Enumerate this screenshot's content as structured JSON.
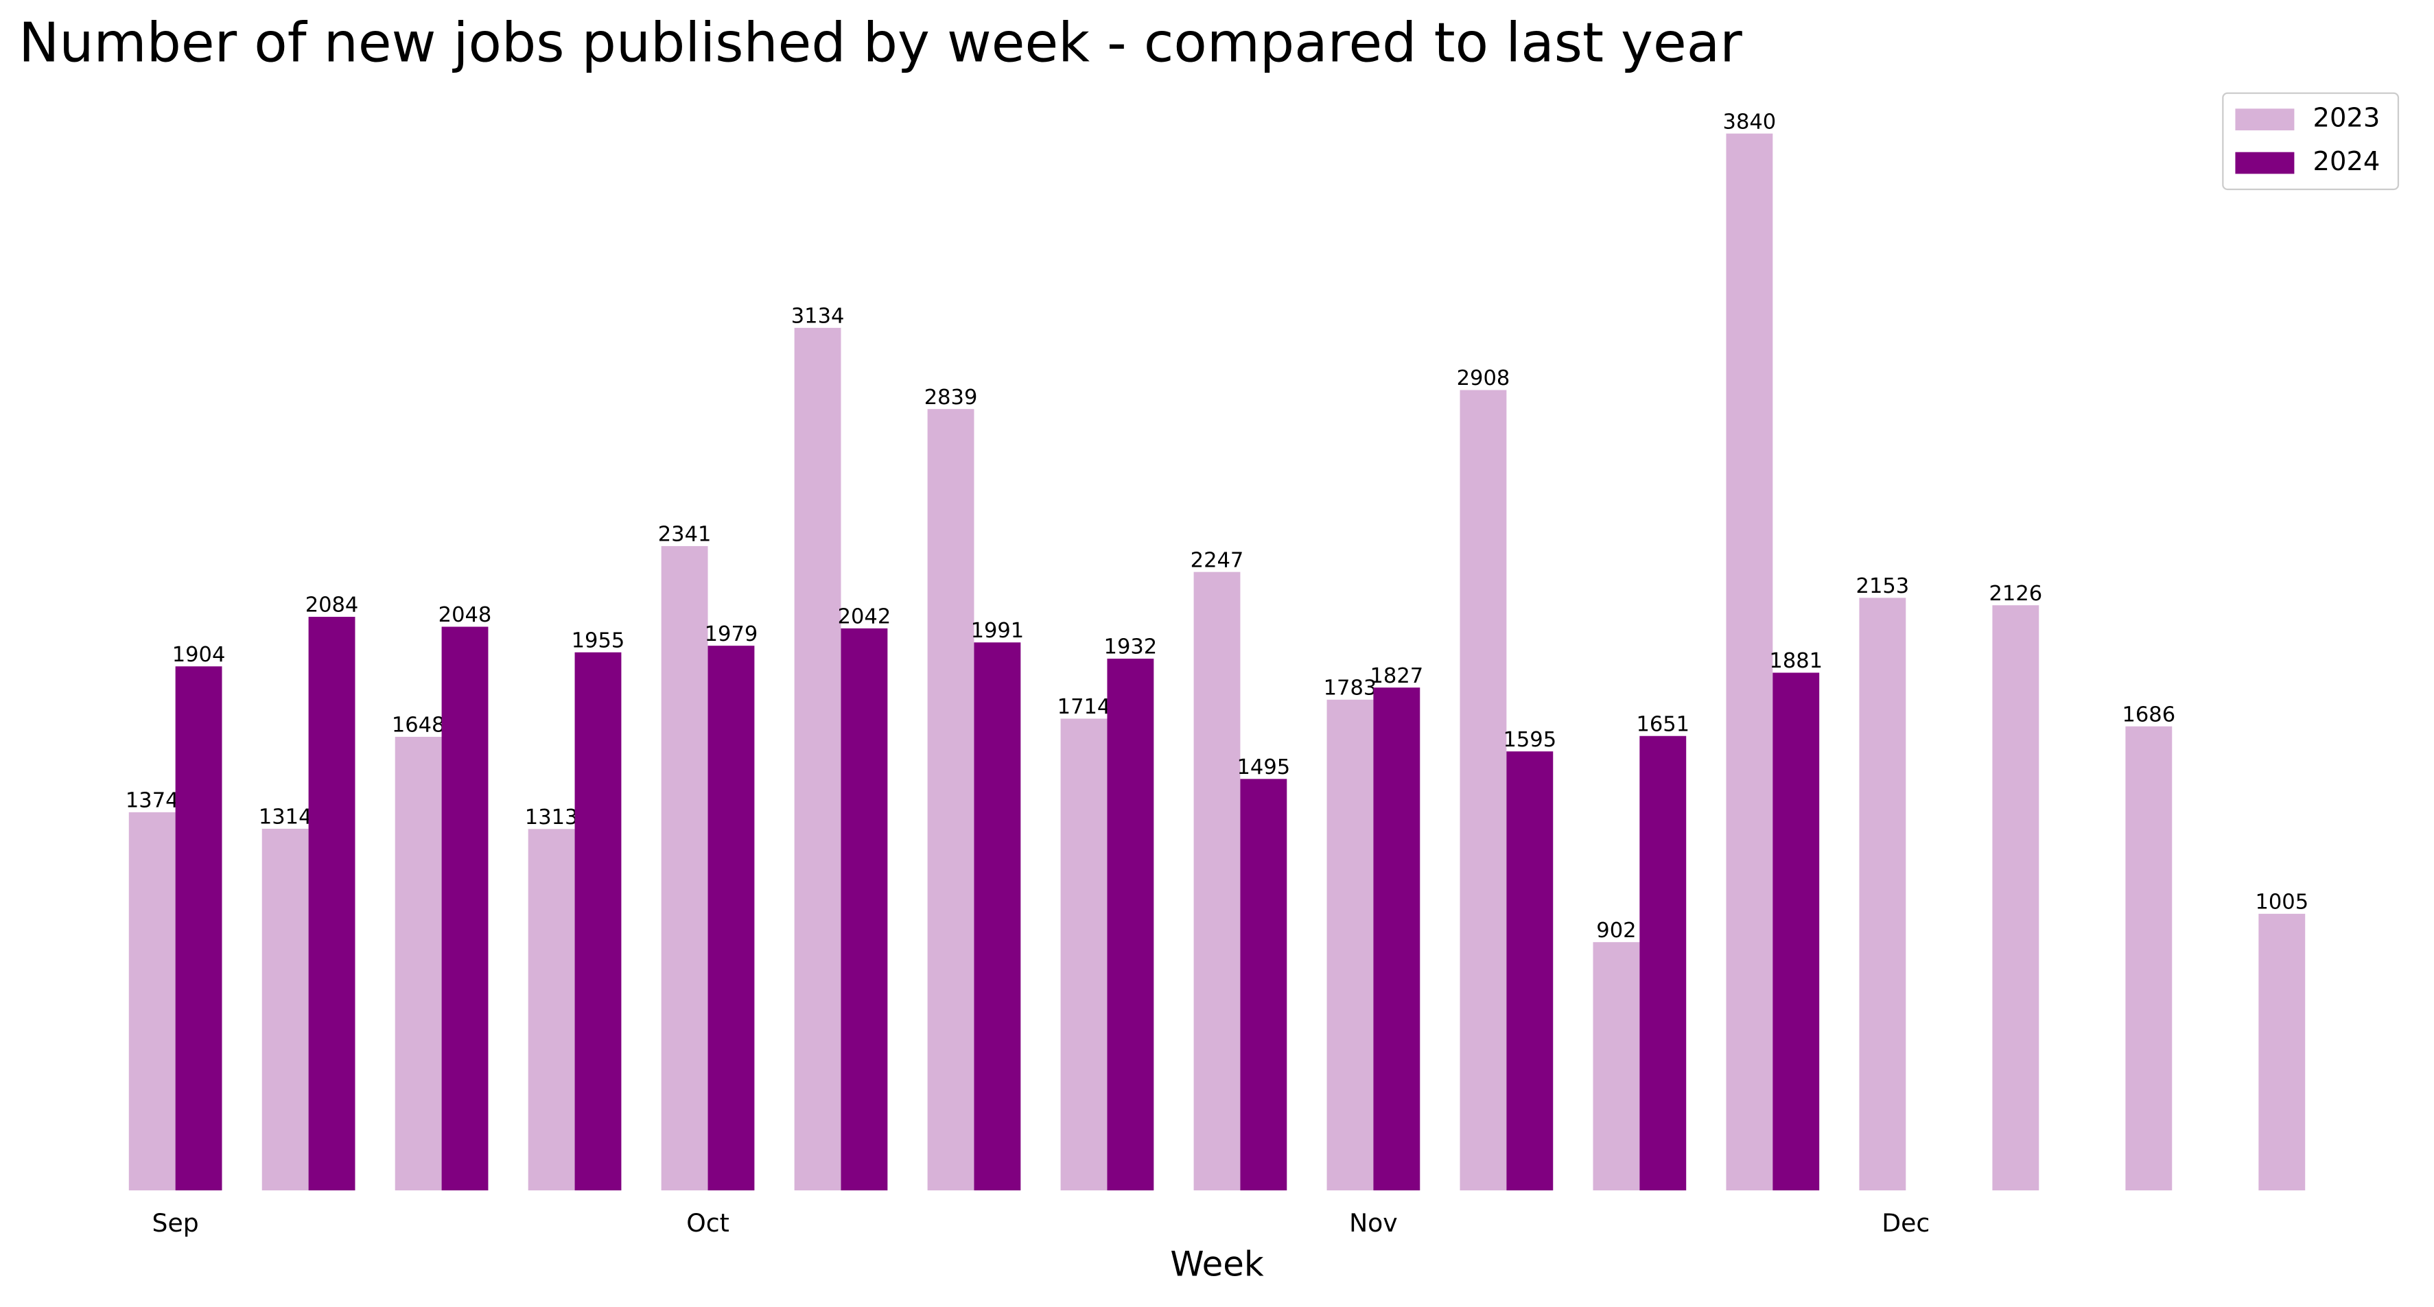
{
  "chart_data": {
    "type": "bar",
    "title": "Number of new jobs published by week - compared to last year",
    "x_label": "Week",
    "categories": [
      "Sep",
      null,
      null,
      null,
      "Oct",
      null,
      null,
      null,
      null,
      "Nov",
      null,
      null,
      null,
      "Dec",
      null,
      null,
      null
    ],
    "series": [
      {
        "name": "2023",
        "color": "#d8b2d8",
        "values": [
          1374,
          1314,
          1648,
          1313,
          2341,
          3134,
          2839,
          1714,
          2247,
          1783,
          2908,
          902,
          3840,
          2153,
          2126,
          1686,
          1005
        ]
      },
      {
        "name": "2024",
        "color": "#800080",
        "values": [
          1904,
          2084,
          2048,
          1955,
          1979,
          2042,
          1991,
          1932,
          1495,
          1827,
          1595,
          1651,
          1881,
          null,
          null,
          null,
          null
        ]
      }
    ],
    "ylim": [
      0,
      4032
    ],
    "legend": "upper right"
  }
}
